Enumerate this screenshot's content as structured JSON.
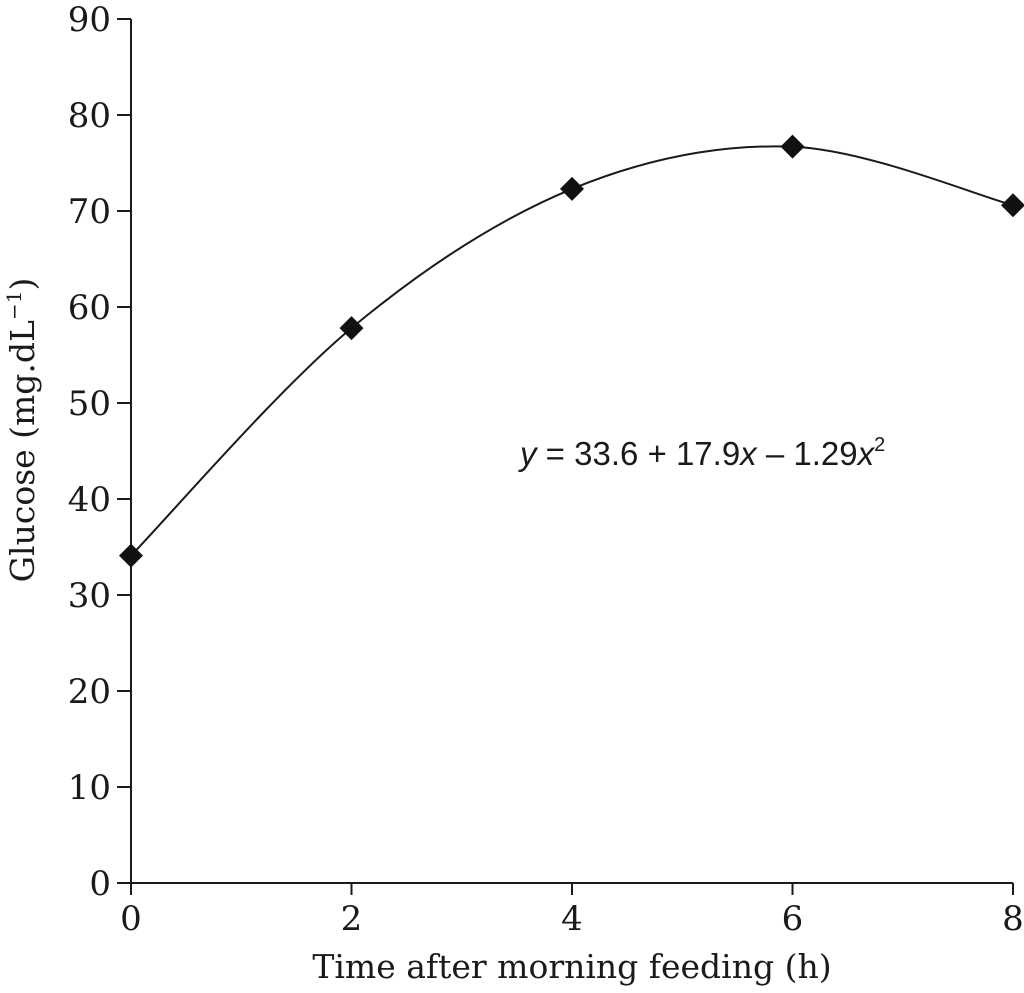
{
  "chart_data": {
    "type": "scatter",
    "title": "",
    "xlabel": "Time after morning feeding (h)",
    "ylabel_main": "Glucose (mg.dL",
    "ylabel_sup": "−1",
    "ylabel_close": ")",
    "xlim": [
      0,
      8
    ],
    "ylim": [
      0,
      90
    ],
    "xticks": [
      0,
      2,
      4,
      6,
      8
    ],
    "yticks": [
      0,
      10,
      20,
      30,
      40,
      50,
      60,
      70,
      80,
      90
    ],
    "grid": false,
    "series": [
      {
        "name": "Glucose",
        "marker": "diamond",
        "x": [
          0,
          2,
          4,
          6,
          8
        ],
        "y": [
          34.1,
          57.8,
          72.3,
          76.7,
          70.6
        ]
      }
    ],
    "fit": {
      "type": "smooth",
      "equation_parts": {
        "y": "y",
        "mid": " = 33.6 + 17.9",
        "x1": "x",
        "tail": " – 1.29",
        "x2": "x",
        "exp": "2"
      }
    },
    "colors": {
      "ink": "#1a1a1a",
      "marker": "#111111",
      "background": "#ffffff"
    }
  }
}
